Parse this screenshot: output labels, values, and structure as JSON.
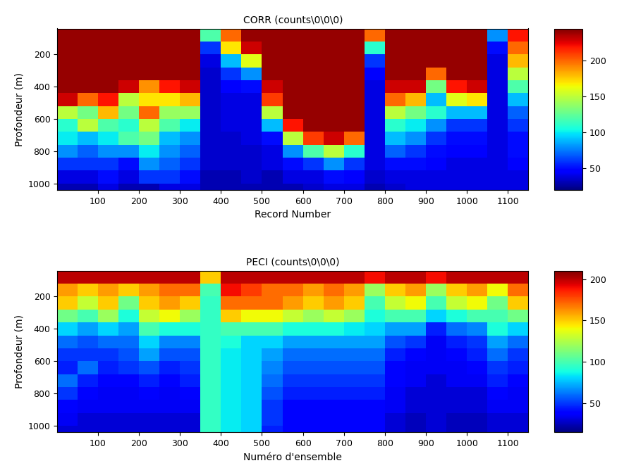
{
  "chart_data": [
    {
      "type": "heatmap",
      "title": "CORR (counts\\0\\0\\0)",
      "x_label": "Record Number",
      "y_label": "Profondeur (m)",
      "xlim": [
        1,
        1150
      ],
      "xticks": [
        100,
        200,
        300,
        400,
        500,
        600,
        700,
        800,
        900,
        1000,
        1100
      ],
      "ylim": [
        1040,
        40
      ],
      "yticks": [
        200,
        400,
        600,
        800,
        1000
      ],
      "x_edges": [
        1,
        50,
        100,
        150,
        200,
        250,
        300,
        350,
        400,
        450,
        500,
        550,
        600,
        650,
        700,
        750,
        800,
        850,
        900,
        950,
        1000,
        1050,
        1100,
        1150
      ],
      "y_edges": [
        40,
        120,
        200,
        280,
        360,
        440,
        520,
        600,
        680,
        760,
        840,
        920,
        1000,
        1040
      ],
      "cells": [
        [
          240,
          240,
          240,
          240,
          240,
          240,
          240,
          120,
          200,
          240,
          240,
          240,
          240,
          240,
          240,
          200,
          240,
          240,
          240,
          240,
          240,
          80,
          220
        ],
        [
          240,
          240,
          240,
          240,
          240,
          240,
          240,
          60,
          170,
          230,
          240,
          240,
          240,
          240,
          240,
          110,
          240,
          240,
          240,
          240,
          240,
          50,
          200
        ],
        [
          240,
          240,
          240,
          240,
          240,
          240,
          240,
          40,
          90,
          160,
          240,
          240,
          240,
          240,
          240,
          60,
          240,
          240,
          240,
          240,
          240,
          40,
          180
        ],
        [
          240,
          240,
          240,
          240,
          240,
          240,
          240,
          35,
          60,
          80,
          240,
          240,
          240,
          240,
          240,
          45,
          240,
          240,
          200,
          240,
          240,
          40,
          150
        ],
        [
          240,
          240,
          240,
          230,
          190,
          220,
          230,
          35,
          45,
          50,
          230,
          240,
          240,
          240,
          240,
          40,
          230,
          230,
          130,
          220,
          230,
          40,
          120
        ],
        [
          230,
          200,
          220,
          150,
          170,
          170,
          180,
          35,
          40,
          40,
          210,
          240,
          240,
          240,
          240,
          40,
          200,
          180,
          90,
          160,
          170,
          40,
          90
        ],
        [
          150,
          130,
          180,
          130,
          200,
          140,
          140,
          35,
          40,
          40,
          150,
          240,
          240,
          240,
          240,
          40,
          150,
          130,
          110,
          90,
          90,
          40,
          70
        ],
        [
          110,
          150,
          120,
          110,
          150,
          120,
          100,
          35,
          40,
          40,
          90,
          220,
          240,
          240,
          240,
          40,
          110,
          100,
          80,
          60,
          60,
          40,
          60
        ],
        [
          100,
          90,
          100,
          120,
          130,
          90,
          80,
          35,
          35,
          40,
          50,
          150,
          210,
          230,
          200,
          40,
          90,
          80,
          60,
          50,
          50,
          40,
          50
        ],
        [
          80,
          70,
          80,
          80,
          100,
          80,
          70,
          35,
          35,
          35,
          40,
          80,
          120,
          150,
          110,
          40,
          70,
          60,
          50,
          45,
          45,
          40,
          50
        ],
        [
          60,
          60,
          60,
          50,
          80,
          70,
          60,
          35,
          35,
          35,
          40,
          50,
          60,
          80,
          60,
          40,
          50,
          50,
          45,
          40,
          40,
          40,
          45
        ],
        [
          40,
          40,
          50,
          40,
          60,
          60,
          50,
          30,
          30,
          35,
          30,
          40,
          40,
          50,
          45,
          35,
          40,
          40,
          40,
          40,
          40,
          40,
          40
        ],
        [
          30,
          30,
          40,
          30,
          30,
          40,
          40,
          30,
          30,
          30,
          30,
          30,
          35,
          40,
          40,
          30,
          35,
          40,
          40,
          40,
          40,
          40,
          40
        ]
      ],
      "colorbar_range": [
        20,
        245
      ],
      "colorbar_ticks": [
        50,
        100,
        150,
        200
      ]
    },
    {
      "type": "heatmap",
      "title": "PECI (counts\\0\\0\\0)",
      "x_label": "Numéro d'ensemble",
      "y_label": "Profondeur (m)",
      "xlim": [
        1,
        1150
      ],
      "xticks": [
        100,
        200,
        300,
        400,
        500,
        600,
        700,
        800,
        900,
        1000,
        1100
      ],
      "ylim": [
        1040,
        40
      ],
      "yticks": [
        200,
        400,
        600,
        800,
        1000
      ],
      "x_edges": [
        1,
        50,
        100,
        150,
        200,
        250,
        300,
        350,
        400,
        450,
        500,
        550,
        600,
        650,
        700,
        750,
        800,
        850,
        900,
        950,
        1000,
        1050,
        1100,
        1150
      ],
      "y_edges": [
        40,
        120,
        200,
        280,
        360,
        440,
        520,
        600,
        680,
        760,
        840,
        920,
        1000,
        1040
      ],
      "cells": [
        [
          200,
          200,
          200,
          200,
          200,
          200,
          200,
          150,
          200,
          200,
          200,
          200,
          200,
          200,
          200,
          190,
          200,
          200,
          190,
          200,
          200,
          200,
          200
        ],
        [
          160,
          150,
          160,
          150,
          160,
          170,
          170,
          100,
          190,
          180,
          170,
          170,
          160,
          170,
          160,
          120,
          150,
          160,
          120,
          150,
          160,
          140,
          170
        ],
        [
          150,
          130,
          150,
          110,
          150,
          160,
          150,
          95,
          170,
          170,
          170,
          160,
          150,
          160,
          150,
          100,
          130,
          140,
          100,
          130,
          140,
          110,
          150
        ],
        [
          110,
          100,
          120,
          90,
          130,
          140,
          120,
          95,
          150,
          140,
          140,
          130,
          120,
          130,
          120,
          90,
          100,
          100,
          80,
          90,
          100,
          100,
          110
        ],
        [
          80,
          70,
          80,
          70,
          100,
          90,
          90,
          95,
          100,
          100,
          100,
          90,
          90,
          90,
          85,
          80,
          70,
          70,
          45,
          60,
          65,
          90,
          80
        ],
        [
          60,
          55,
          60,
          60,
          80,
          65,
          65,
          95,
          90,
          80,
          80,
          70,
          70,
          70,
          70,
          70,
          55,
          50,
          35,
          45,
          50,
          70,
          60
        ],
        [
          50,
          50,
          50,
          55,
          70,
          55,
          55,
          95,
          85,
          80,
          70,
          60,
          60,
          60,
          60,
          60,
          45,
          40,
          35,
          40,
          45,
          60,
          50
        ],
        [
          45,
          60,
          45,
          50,
          55,
          45,
          50,
          95,
          85,
          80,
          65,
          55,
          55,
          55,
          55,
          55,
          40,
          35,
          35,
          35,
          40,
          50,
          45
        ],
        [
          60,
          45,
          40,
          40,
          45,
          40,
          45,
          95,
          85,
          80,
          60,
          50,
          50,
          50,
          50,
          50,
          40,
          35,
          30,
          35,
          35,
          45,
          40
        ],
        [
          50,
          40,
          35,
          35,
          40,
          35,
          40,
          95,
          85,
          80,
          55,
          45,
          45,
          45,
          45,
          45,
          35,
          30,
          30,
          30,
          30,
          40,
          35
        ],
        [
          40,
          35,
          35,
          35,
          35,
          35,
          35,
          95,
          85,
          80,
          50,
          40,
          40,
          40,
          40,
          40,
          35,
          30,
          30,
          30,
          30,
          35,
          35
        ],
        [
          35,
          30,
          30,
          30,
          30,
          30,
          30,
          95,
          85,
          80,
          50,
          40,
          40,
          40,
          40,
          40,
          30,
          25,
          30,
          25,
          25,
          30,
          30
        ],
        [
          30,
          30,
          30,
          30,
          30,
          30,
          30,
          95,
          85,
          80,
          45,
          40,
          40,
          40,
          40,
          40,
          30,
          25,
          30,
          25,
          25,
          30,
          30
        ]
      ],
      "colorbar_range": [
        15,
        210
      ],
      "colorbar_ticks": [
        50,
        100,
        150,
        200
      ]
    }
  ]
}
